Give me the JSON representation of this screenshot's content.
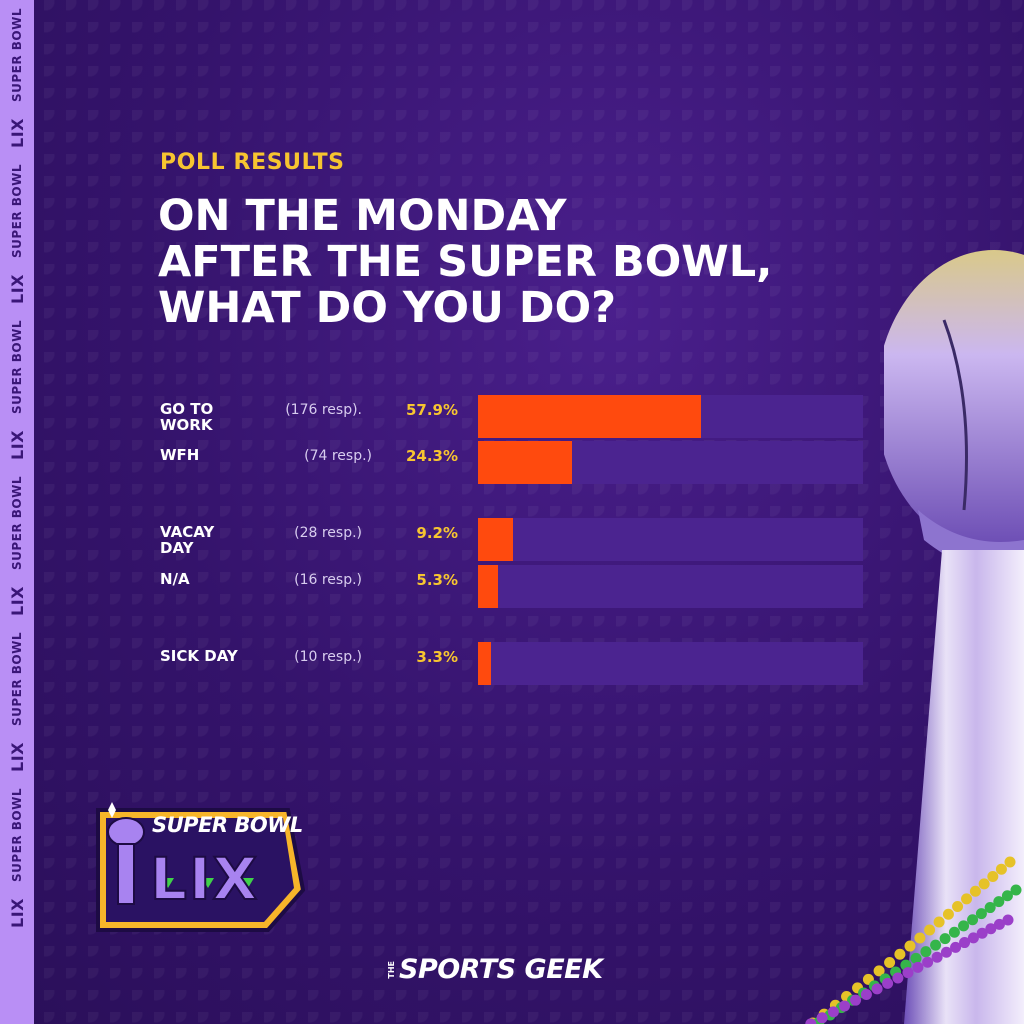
{
  "side_strip": {
    "words": [
      "SUPER BOWL",
      "LIX",
      "SUPER BOWL",
      "LIX",
      "SUPER BOWL",
      "LIX",
      "SUPER BOWL",
      "LIX",
      "SUPER BOWL",
      "LIX",
      "SUPER BOWL",
      "LIX"
    ]
  },
  "header": {
    "eyebrow": "POLL RESULTS",
    "title_lines": [
      "ON THE MONDAY",
      "AFTER THE SUPER BOWL,",
      "WHAT DO YOU DO?"
    ]
  },
  "chart_data": {
    "type": "bar",
    "orientation": "horizontal",
    "value_max": 100,
    "rows": [
      {
        "label_lines": [
          "GO TO",
          "WORK"
        ],
        "responses": "(176 resp).",
        "percent_label": "57.9%",
        "value": 57.9
      },
      {
        "label_lines": [
          "WFH"
        ],
        "responses": "(74 resp.)",
        "percent_label": "24.3%",
        "value": 24.3
      },
      {
        "label_lines": [
          "VACAY",
          "DAY"
        ],
        "responses": "(28 resp.)",
        "percent_label": "9.2%",
        "value": 9.2
      },
      {
        "label_lines": [
          "N/A"
        ],
        "responses": "(16 resp.)",
        "percent_label": "5.3%",
        "value": 5.3
      },
      {
        "label_lines": [
          "SICK DAY"
        ],
        "responses": "(10 resp.)",
        "percent_label": "3.3%",
        "value": 3.3
      }
    ],
    "colors": {
      "fill": "#ff4a0e",
      "track": "#4b2490",
      "percent": "#f7c530"
    }
  },
  "logo": {
    "line1": "SUPER BOWL",
    "line2": "LIX"
  },
  "brand": {
    "prefix": "THE",
    "name": "SPORTS GEEK"
  }
}
